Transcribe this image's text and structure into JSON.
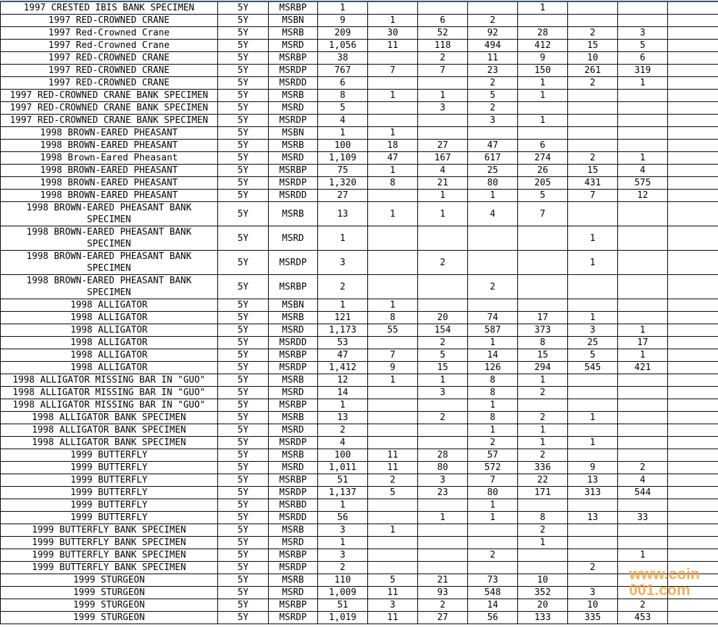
{
  "watermark": "www.coin001.com",
  "colors": {
    "grid": "#000000",
    "watermark": "#f7a040",
    "top_band": "#a9c0dc"
  },
  "rows": [
    [
      "1997 CRESTED IBIS BANK SPECIMEN",
      "5Y",
      "MSRBP",
      "1",
      "",
      "",
      "",
      "1",
      "",
      "",
      ""
    ],
    [
      "1997 RED-CROWNED CRANE",
      "5Y",
      "MSBN",
      "9",
      "1",
      "6",
      "2",
      "",
      "",
      "",
      ""
    ],
    [
      "1997 Red-Crowned Crane",
      "5Y",
      "MSRB",
      "209",
      "30",
      "52",
      "92",
      "28",
      "2",
      "3",
      ""
    ],
    [
      "1997 Red-Crowned Crane",
      "5Y",
      "MSRD",
      "1,056",
      "11",
      "118",
      "494",
      "412",
      "15",
      "5",
      ""
    ],
    [
      "1997 RED-CROWNED CRANE",
      "5Y",
      "MSRBP",
      "38",
      "",
      "2",
      "11",
      "9",
      "10",
      "6",
      ""
    ],
    [
      "1997 RED-CROWNED CRANE",
      "5Y",
      "MSRDP",
      "767",
      "7",
      "7",
      "23",
      "150",
      "261",
      "319",
      ""
    ],
    [
      "1997 RED-CROWNED CRANE",
      "5Y",
      "MSRDD",
      "6",
      "",
      "",
      "2",
      "1",
      "2",
      "1",
      ""
    ],
    [
      "1997 RED-CROWNED CRANE BANK SPECIMEN",
      "5Y",
      "MSRB",
      "8",
      "1",
      "1",
      "5",
      "1",
      "",
      "",
      ""
    ],
    [
      "1997 RED-CROWNED CRANE BANK SPECIMEN",
      "5Y",
      "MSRD",
      "5",
      "",
      "3",
      "2",
      "",
      "",
      "",
      ""
    ],
    [
      "1997 RED-CROWNED CRANE BANK SPECIMEN",
      "5Y",
      "MSRDP",
      "4",
      "",
      "",
      "3",
      "1",
      "",
      "",
      ""
    ],
    [
      "1998 BROWN-EARED PHEASANT",
      "5Y",
      "MSBN",
      "1",
      "1",
      "",
      "",
      "",
      "",
      "",
      ""
    ],
    [
      "1998 BROWN-EARED PHEASANT",
      "5Y",
      "MSRB",
      "100",
      "18",
      "27",
      "47",
      "6",
      "",
      "",
      ""
    ],
    [
      "1998 Brown-Eared Pheasant",
      "5Y",
      "MSRD",
      "1,109",
      "47",
      "167",
      "617",
      "274",
      "2",
      "1",
      ""
    ],
    [
      "1998 BROWN-EARED PHEASANT",
      "5Y",
      "MSRBP",
      "75",
      "1",
      "4",
      "25",
      "26",
      "15",
      "4",
      ""
    ],
    [
      "1998 BROWN-EARED PHEASANT",
      "5Y",
      "MSRDP",
      "1,320",
      "8",
      "21",
      "80",
      "205",
      "431",
      "575",
      ""
    ],
    [
      "1998 BROWN-EARED PHEASANT",
      "5Y",
      "MSRDD",
      "27",
      "",
      "1",
      "1",
      "5",
      "7",
      "12",
      ""
    ],
    [
      "1998 BROWN-EARED PHEASANT BANK SPECIMEN",
      "5Y",
      "MSRB",
      "13",
      "1",
      "1",
      "4",
      "7",
      "",
      "",
      ""
    ],
    [
      "1998 BROWN-EARED PHEASANT BANK SPECIMEN",
      "5Y",
      "MSRD",
      "1",
      "",
      "",
      "",
      "",
      "1",
      "",
      ""
    ],
    [
      "1998 BROWN-EARED PHEASANT BANK SPECIMEN",
      "5Y",
      "MSRDP",
      "3",
      "",
      "2",
      "",
      "",
      "1",
      "",
      ""
    ],
    [
      "1998 BROWN-EARED PHEASANT BANK SPECIMEN",
      "5Y",
      "MSRBP",
      "2",
      "",
      "",
      "2",
      "",
      "",
      "",
      ""
    ],
    [
      "1998 ALLIGATOR",
      "5Y",
      "MSBN",
      "1",
      "1",
      "",
      "",
      "",
      "",
      "",
      ""
    ],
    [
      "1998 ALLIGATOR",
      "5Y",
      "MSRB",
      "121",
      "8",
      "20",
      "74",
      "17",
      "1",
      "",
      ""
    ],
    [
      "1998 ALLIGATOR",
      "5Y",
      "MSRD",
      "1,173",
      "55",
      "154",
      "587",
      "373",
      "3",
      "1",
      ""
    ],
    [
      "1998 ALLIGATOR",
      "5Y",
      "MSRDD",
      "53",
      "",
      "2",
      "1",
      "8",
      "25",
      "17",
      ""
    ],
    [
      "1998 ALLIGATOR",
      "5Y",
      "MSRBP",
      "47",
      "7",
      "5",
      "14",
      "15",
      "5",
      "1",
      ""
    ],
    [
      "1998 ALLIGATOR",
      "5Y",
      "MSRDP",
      "1,412",
      "9",
      "15",
      "126",
      "294",
      "545",
      "421",
      ""
    ],
    [
      "1998 ALLIGATOR MISSING BAR IN \"GUO\"",
      "5Y",
      "MSRB",
      "12",
      "1",
      "1",
      "8",
      "1",
      "",
      "",
      ""
    ],
    [
      "1998 ALLIGATOR MISSING BAR IN \"GUO\"",
      "5Y",
      "MSRD",
      "14",
      "",
      "3",
      "8",
      "2",
      "",
      "",
      ""
    ],
    [
      "1998 ALLIGATOR MISSING BAR IN \"GUO\"",
      "5Y",
      "MSRBP",
      "1",
      "",
      "",
      "1",
      "",
      "",
      "",
      ""
    ],
    [
      "1998 ALLIGATOR BANK SPECIMEN",
      "5Y",
      "MSRB",
      "13",
      "",
      "2",
      "8",
      "2",
      "1",
      "",
      ""
    ],
    [
      "1998 ALLIGATOR BANK SPECIMEN",
      "5Y",
      "MSRD",
      "2",
      "",
      "",
      "1",
      "1",
      "",
      "",
      ""
    ],
    [
      "1998 ALLIGATOR BANK SPECIMEN",
      "5Y",
      "MSRDP",
      "4",
      "",
      "",
      "2",
      "1",
      "1",
      "",
      ""
    ],
    [
      "1999 BUTTERFLY",
      "5Y",
      "MSRB",
      "100",
      "11",
      "28",
      "57",
      "2",
      "",
      "",
      ""
    ],
    [
      "1999 BUTTERFLY",
      "5Y",
      "MSRD",
      "1,011",
      "11",
      "80",
      "572",
      "336",
      "9",
      "2",
      ""
    ],
    [
      "1999 BUTTERFLY",
      "5Y",
      "MSRBP",
      "51",
      "2",
      "3",
      "7",
      "22",
      "13",
      "4",
      ""
    ],
    [
      "1999 BUTTERFLY",
      "5Y",
      "MSRDP",
      "1,137",
      "5",
      "23",
      "80",
      "171",
      "313",
      "544",
      ""
    ],
    [
      "1999 BUTTERFLY",
      "5Y",
      "MSRBD",
      "1",
      "",
      "",
      "1",
      "",
      "",
      "",
      ""
    ],
    [
      "1999 BUTTERFLY",
      "5Y",
      "MSRDD",
      "56",
      "",
      "1",
      "1",
      "8",
      "13",
      "33",
      ""
    ],
    [
      "1999 BUTTERFLY BANK SPECIMEN",
      "5Y",
      "MSRB",
      "3",
      "1",
      "",
      "",
      "2",
      "",
      "",
      ""
    ],
    [
      "1999 BUTTERFLY BANK SPECIMEN",
      "5Y",
      "MSRD",
      "1",
      "",
      "",
      "",
      "1",
      "",
      "",
      ""
    ],
    [
      "1999 BUTTERFLY BANK SPECIMEN",
      "5Y",
      "MSRBP",
      "3",
      "",
      "",
      "2",
      "",
      "",
      "1",
      ""
    ],
    [
      "1999 BUTTERFLY BANK SPECIMEN",
      "5Y",
      "MSRDP",
      "2",
      "",
      "",
      "",
      "",
      "2",
      "",
      ""
    ],
    [
      "1999 STURGEON",
      "5Y",
      "MSRB",
      "110",
      "5",
      "21",
      "73",
      "10",
      "",
      "",
      ""
    ],
    [
      "1999 STURGEON",
      "5Y",
      "MSRD",
      "1,009",
      "11",
      "93",
      "548",
      "352",
      "3",
      "",
      ""
    ],
    [
      "1999 STURGEON",
      "5Y",
      "MSRBP",
      "51",
      "3",
      "2",
      "14",
      "20",
      "10",
      "2",
      ""
    ],
    [
      "1999 STURGEON",
      "5Y",
      "MSRDP",
      "1,019",
      "11",
      "27",
      "56",
      "133",
      "335",
      "453",
      ""
    ]
  ]
}
